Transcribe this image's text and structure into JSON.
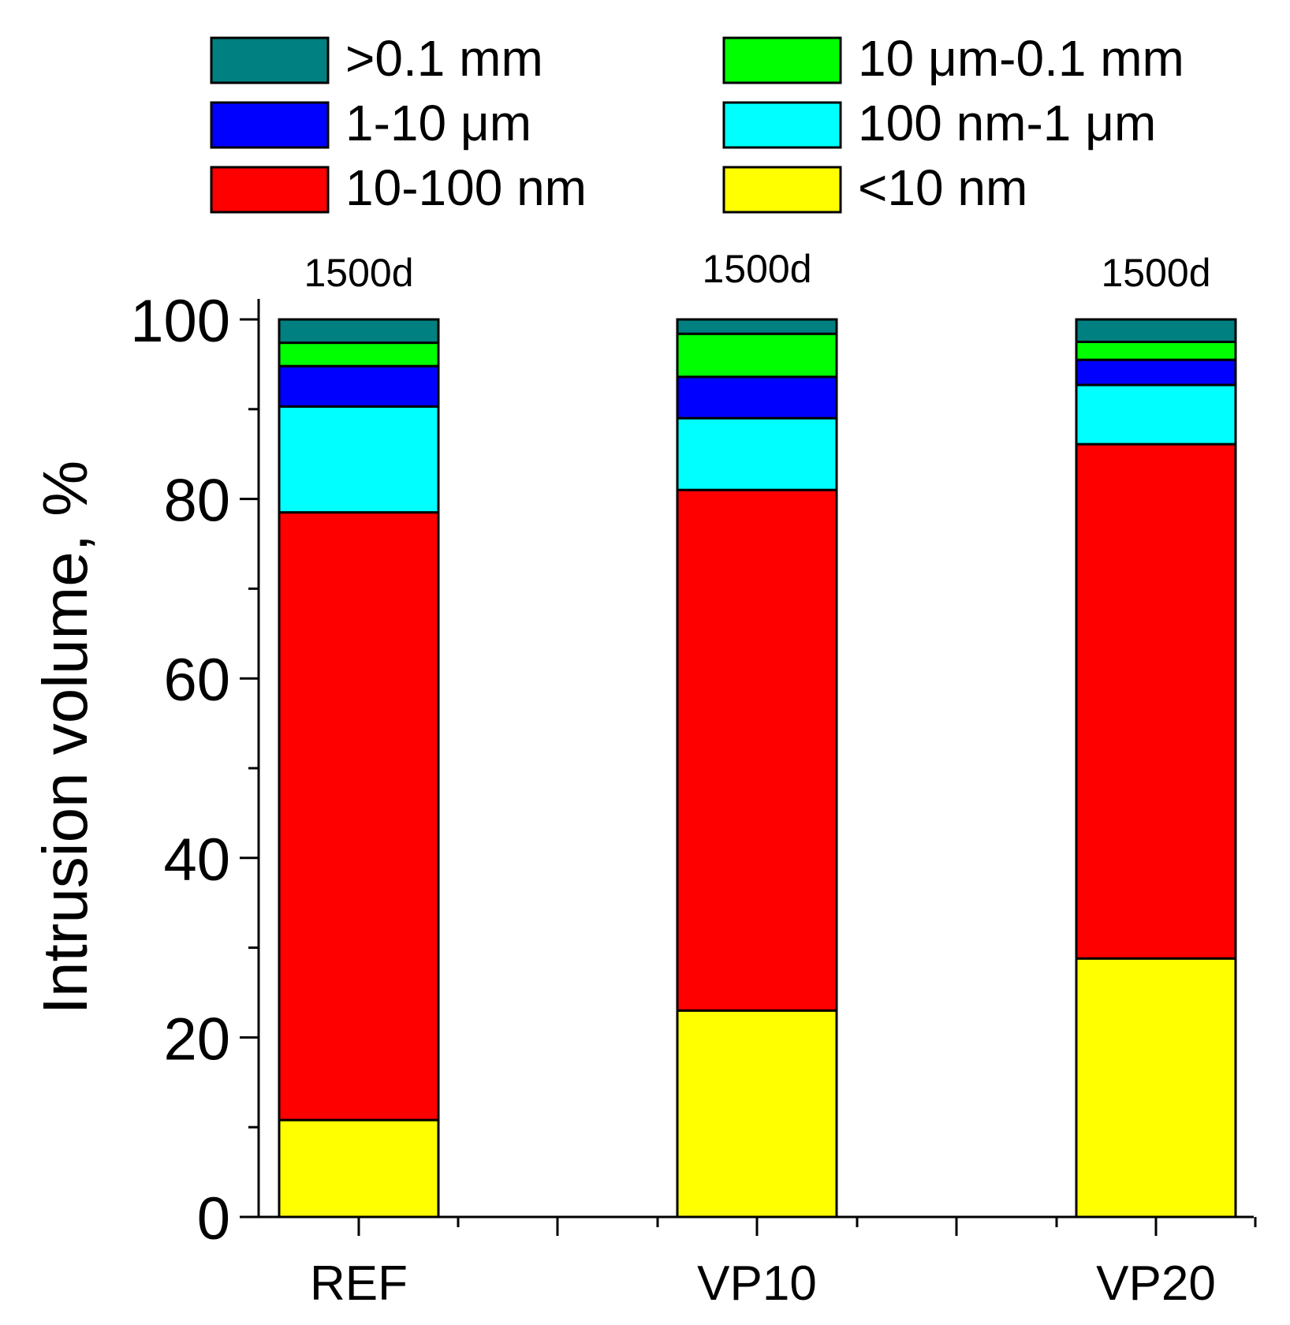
{
  "chart_data": {
    "type": "stacked-bar",
    "ylabel": "Intrusion volume, %",
    "xlabel": "",
    "ylim": [
      0,
      100
    ],
    "y_major_ticks": [
      0,
      20,
      40,
      60,
      80,
      100
    ],
    "y_minor_ticks": [
      10,
      30,
      50,
      70,
      90
    ],
    "categories": [
      "REF",
      "VP10",
      "VP20"
    ],
    "bar_annotations": [
      "1500d",
      "1500d",
      "1500d"
    ],
    "legend_placement": "top",
    "series": [
      {
        "name": "<10 nm",
        "color": "#ffff00",
        "values": [
          10.8,
          23.0,
          28.8
        ]
      },
      {
        "name": "10-100 nm",
        "color": "#ff0000",
        "values": [
          67.7,
          58.0,
          57.3
        ]
      },
      {
        "name": "100 nm-1 μm",
        "color": "#00ffff",
        "values": [
          11.8,
          8.0,
          6.6
        ]
      },
      {
        "name": "1-10 μm",
        "color": "#0000ff",
        "values": [
          4.5,
          4.6,
          2.8
        ]
      },
      {
        "name": "10 μm-0.1 mm",
        "color": "#00ff00",
        "values": [
          2.6,
          4.8,
          2.0
        ]
      },
      {
        "name": ">0.1 mm",
        "color": "#008080",
        "values": [
          2.6,
          1.6,
          2.5
        ]
      }
    ],
    "legend_order": [
      ">0.1 mm",
      "10 μm-0.1 mm",
      "1-10 μm",
      "100 nm-1 μm",
      "10-100 nm",
      "<10 nm"
    ]
  }
}
